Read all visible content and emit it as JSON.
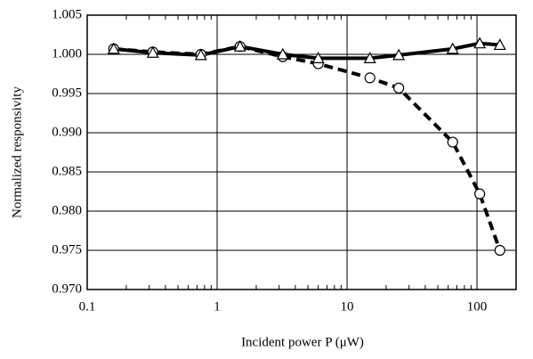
{
  "chart_data": {
    "type": "line",
    "x_label": "Incident power P (μW)",
    "y_label": "Normalized responsivity",
    "xscale": "log",
    "xlim": [
      0.1,
      200
    ],
    "ylim": [
      0.97,
      1.005
    ],
    "xticks": [
      0.1,
      1,
      10,
      100
    ],
    "yticks": [
      {
        "value": 0.97,
        "label": "0.970"
      },
      {
        "value": 0.975,
        "label": "0.975"
      },
      {
        "value": 0.98,
        "label": "0.980"
      },
      {
        "value": 0.985,
        "label": "0.985"
      },
      {
        "value": 0.99,
        "label": "0.990"
      },
      {
        "value": 0.995,
        "label": "0.995"
      },
      {
        "value": 1.0,
        "label": "1.000"
      },
      {
        "value": 1.005,
        "label": "1.005"
      }
    ],
    "grid": true,
    "x": [
      0.16,
      0.32,
      0.75,
      1.5,
      3.2,
      6,
      15,
      25,
      65,
      105,
      150
    ],
    "series": [
      {
        "color": "#000000",
        "marker": "circle",
        "linestyle": "dashed",
        "values": [
          1.0007,
          1.0003,
          1.0,
          1.001,
          0.9997,
          0.9988,
          0.997,
          0.9957,
          0.9888,
          0.9822,
          0.975
        ]
      },
      {
        "color": "#000000",
        "marker": "triangle",
        "linestyle": "solid",
        "values": [
          1.0007,
          1.0002,
          0.9999,
          1.001,
          1.0,
          0.9995,
          0.9995,
          0.9999,
          1.0007,
          1.0014,
          1.0012
        ]
      }
    ]
  }
}
